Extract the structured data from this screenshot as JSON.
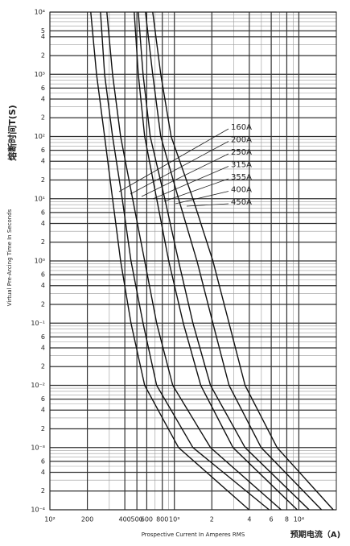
{
  "chart_data": {
    "type": "line",
    "log_x": true,
    "log_y": true,
    "grid": true,
    "color": "#111",
    "y_title": "熔断时间T(S)",
    "y_title_en": "Virtual Pre-Arcing Time In Seconds",
    "x_title_en": "Prospective Current In Amperes RMS",
    "x_title": "预期电流（A)",
    "xlim": [
      100,
      20000
    ],
    "ylim": [
      0.0001,
      10000
    ],
    "xticks": [
      {
        "value": 100,
        "label": "10²"
      },
      200,
      400,
      500,
      600,
      800,
      {
        "value": 1000,
        "label": "10³"
      },
      {
        "value": 2000,
        "label": "2"
      },
      {
        "value": 4000,
        "label": "4"
      },
      {
        "value": 6000,
        "label": "6"
      },
      {
        "value": 8000,
        "label": "8"
      },
      {
        "value": 10000,
        "label": "10⁴"
      }
    ],
    "yticks": [
      {
        "value": 10000,
        "label": "10⁴"
      },
      {
        "value": 5000,
        "label": "5"
      },
      {
        "value": 4000,
        "label": "4"
      },
      {
        "value": 2000,
        "label": "2"
      },
      {
        "value": 1000,
        "label": "10³"
      },
      {
        "value": 600,
        "label": "6"
      },
      {
        "value": 400,
        "label": "4"
      },
      {
        "value": 200,
        "label": "2"
      },
      {
        "value": 100,
        "label": "10²"
      },
      {
        "value": 60,
        "label": "6"
      },
      {
        "value": 40,
        "label": "4"
      },
      {
        "value": 20,
        "label": "2"
      },
      {
        "value": 10,
        "label": "10¹"
      },
      6,
      4,
      2,
      {
        "value": 1,
        "label": "10⁰"
      },
      {
        "value": 0.6,
        "label": "6"
      },
      {
        "value": 0.4,
        "label": "4"
      },
      {
        "value": 0.2,
        "label": "2"
      },
      {
        "value": 0.1,
        "label": "10⁻¹"
      },
      {
        "value": 0.06,
        "label": "6"
      },
      {
        "value": 0.04,
        "label": "4"
      },
      {
        "value": 0.02,
        "label": "2"
      },
      {
        "value": 0.01,
        "label": "10⁻²"
      },
      {
        "value": 0.006,
        "label": "6"
      },
      {
        "value": 0.004,
        "label": "4"
      },
      {
        "value": 0.002,
        "label": "2"
      },
      {
        "value": 0.001,
        "label": "10⁻³"
      },
      {
        "value": 0.0006,
        "label": "6"
      },
      {
        "value": 0.0004,
        "label": "4"
      },
      {
        "value": 0.0002,
        "label": "2"
      },
      {
        "value": 0.0001,
        "label": "10⁻⁴"
      }
    ],
    "series": [
      {
        "name": "160A",
        "x": [
          213,
          237,
          275,
          319,
          370,
          448,
          577,
          1080,
          3980
        ],
        "values": [
          10000,
          1000,
          100,
          10,
          1,
          0.1,
          0.01,
          0.001,
          0.0001
        ]
      },
      {
        "name": "200A",
        "x": [
          255,
          275,
          319,
          381,
          448,
          560,
          721,
          1410,
          5770
        ],
        "values": [
          10000,
          1000,
          100,
          10,
          1,
          0.1,
          0.01,
          0.001,
          0.0001
        ]
      },
      {
        "name": "250A",
        "x": [
          287,
          319,
          370,
          462,
          577,
          721,
          970,
          1950,
          7210
        ],
        "values": [
          10000,
          1000,
          100,
          10,
          1,
          0.1,
          0.01,
          0.001,
          0.0001
        ]
      },
      {
        "name": "315A",
        "x": [
          476,
          513,
          577,
          721,
          901,
          1180,
          1630,
          2960,
          9700
        ],
        "values": [
          10000,
          1000,
          100,
          10,
          1,
          0.1,
          0.01,
          0.001,
          0.0001
        ]
      },
      {
        "name": "355A",
        "x": [
          513,
          560,
          640,
          837,
          1080,
          1410,
          1950,
          3700,
          12100
        ],
        "values": [
          10000,
          1000,
          100,
          10,
          1,
          0.1,
          0.01,
          0.001,
          0.0001
        ]
      },
      {
        "name": "400A",
        "x": [
          586,
          670,
          777,
          1080,
          1520,
          2040,
          2750,
          4980,
          15200
        ],
        "values": [
          10000,
          1000,
          100,
          10,
          1,
          0.1,
          0.01,
          0.001,
          0.0001
        ]
      },
      {
        "name": "450A",
        "x": [
          670,
          777,
          942,
          1410,
          2040,
          2750,
          3700,
          6690,
          18900
        ],
        "values": [
          10000,
          1000,
          100,
          10,
          1,
          0.1,
          0.01,
          0.001,
          0.0001
        ]
      }
    ]
  }
}
